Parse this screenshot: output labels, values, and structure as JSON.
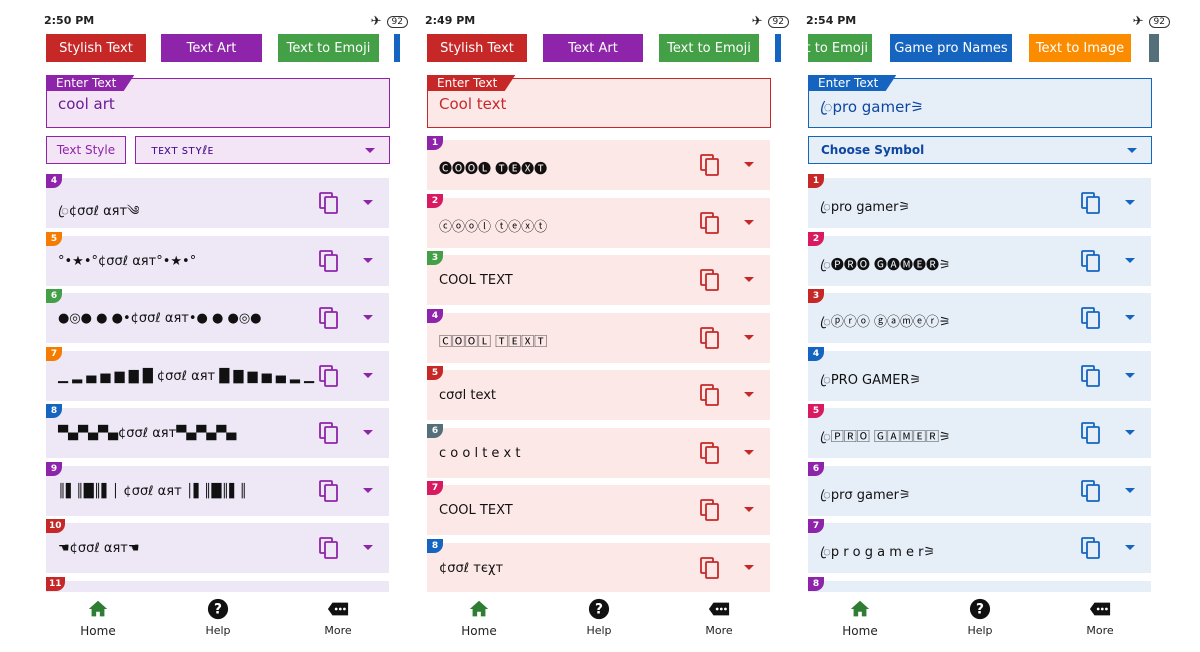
{
  "status": [
    {
      "time": "2:50 PM",
      "battery": "92"
    },
    {
      "time": "2:49 PM",
      "battery": "92"
    },
    {
      "time": "2:54 PM",
      "battery": "92"
    }
  ],
  "screens": [
    {
      "tabs": [
        "Stylish Text",
        "Text Art",
        "Text to Emoji"
      ],
      "input_label": "Enter Text",
      "input_value": "cool art",
      "filter_label": "Text Style",
      "filter_value": "ᴛᴇхᴛ ѕᴛʏℓᴇ",
      "rows": [
        {
          "num": "4",
          "text": "ꦿ¢σσℓ αят༄"
        },
        {
          "num": "5",
          "text": "°•★•°¢σσℓ αят°•★•°"
        },
        {
          "num": "6",
          "text": "●◎● ● ●•¢σσℓ αят•● ● ●◎●"
        },
        {
          "num": "7",
          "text": "▁ ▂ ▄ ▅ ▆ ▇ █ ¢σσℓ αят █ ▇ ▆ ▅ ▄ ▂ ▁"
        },
        {
          "num": "8",
          "text": "▀▄▀▄▀▄¢σσℓ αят▀▄▀▄▀▄"
        },
        {
          "num": "9",
          "text": "║▌║█║▌│ ¢σσℓ αят │▌║█║▌║"
        },
        {
          "num": "10",
          "text": "☚¢σσℓ αят☚"
        },
        {
          "num": "11",
          "text": ""
        }
      ]
    },
    {
      "tabs": [
        "Stylish Text",
        "Text Art",
        "Text to Emoji"
      ],
      "input_label": "Enter Text",
      "input_value": "Cool text",
      "rows": [
        {
          "num": "1",
          "text": "🅒🅞🅞🅛 🅣🅔🅧🅣"
        },
        {
          "num": "2",
          "text": "ⓒⓞⓞⓛ ⓣⓔⓧⓣ"
        },
        {
          "num": "3",
          "text": "COOL TEXT"
        },
        {
          "num": "4",
          "text": "🄲🄾🄾🄻 🅃🄴🅇🅃"
        },
        {
          "num": "5",
          "text": "cσσl text"
        },
        {
          "num": "6",
          "text": "c o o l  t e x t"
        },
        {
          "num": "7",
          "text": "COOL TEXT"
        },
        {
          "num": "8",
          "text": "¢σσℓ тєχт"
        }
      ]
    },
    {
      "tabs": [
        "xt to Emoji",
        "Game pro Names",
        "Text to Image"
      ],
      "input_label": "Enter Text",
      "input_value": "ꦿpro gamer⚞",
      "filter_value": "Choose Symbol",
      "rows": [
        {
          "num": "1",
          "text": "ꦿpro gamer⚞"
        },
        {
          "num": "2",
          "text": "ꦿ🅟🅡🅞 🅖🅐🅜🅔🅡⚞"
        },
        {
          "num": "3",
          "text": "ꦿⓟⓡⓞ ⓖⓐⓜⓔⓡ⚞"
        },
        {
          "num": "4",
          "text": "ꦿPRO GAMER⚞"
        },
        {
          "num": "5",
          "text": "ꦿ🄿🅁🄾 🄶🄰🄼🄴🅁⚞"
        },
        {
          "num": "6",
          "text": "ꦿprσ gamer⚞"
        },
        {
          "num": "7",
          "text": "ꦿp r o  g a m e r⚞"
        },
        {
          "num": "8",
          "text": ""
        }
      ]
    }
  ],
  "nav": {
    "home": "Home",
    "help": "Help",
    "more": "More"
  },
  "colors": {
    "purple": "#8e24aa",
    "red": "#c62828",
    "green": "#43a047",
    "blue": "#1565c0",
    "orange": "#fb8c00",
    "bg_purple": "#ede7f6",
    "bg_red": "#fde8e8",
    "bg_blue": "#e6eef8"
  },
  "badge_colors_1": [
    "#8e24aa",
    "#f57c00",
    "#43a047",
    "#f57c00",
    "#1565c0",
    "#8e24aa",
    "#c62828",
    "#c62828"
  ],
  "badge_colors_2": [
    "#8e24aa",
    "#d81b60",
    "#43a047",
    "#8e24aa",
    "#c62828",
    "#546e7a",
    "#d81b60",
    "#1565c0"
  ],
  "badge_colors_3": [
    "#c62828",
    "#d81b60",
    "#c62828",
    "#1565c0",
    "#d81b60",
    "#8e24aa",
    "#8e24aa",
    "#8e24aa"
  ]
}
